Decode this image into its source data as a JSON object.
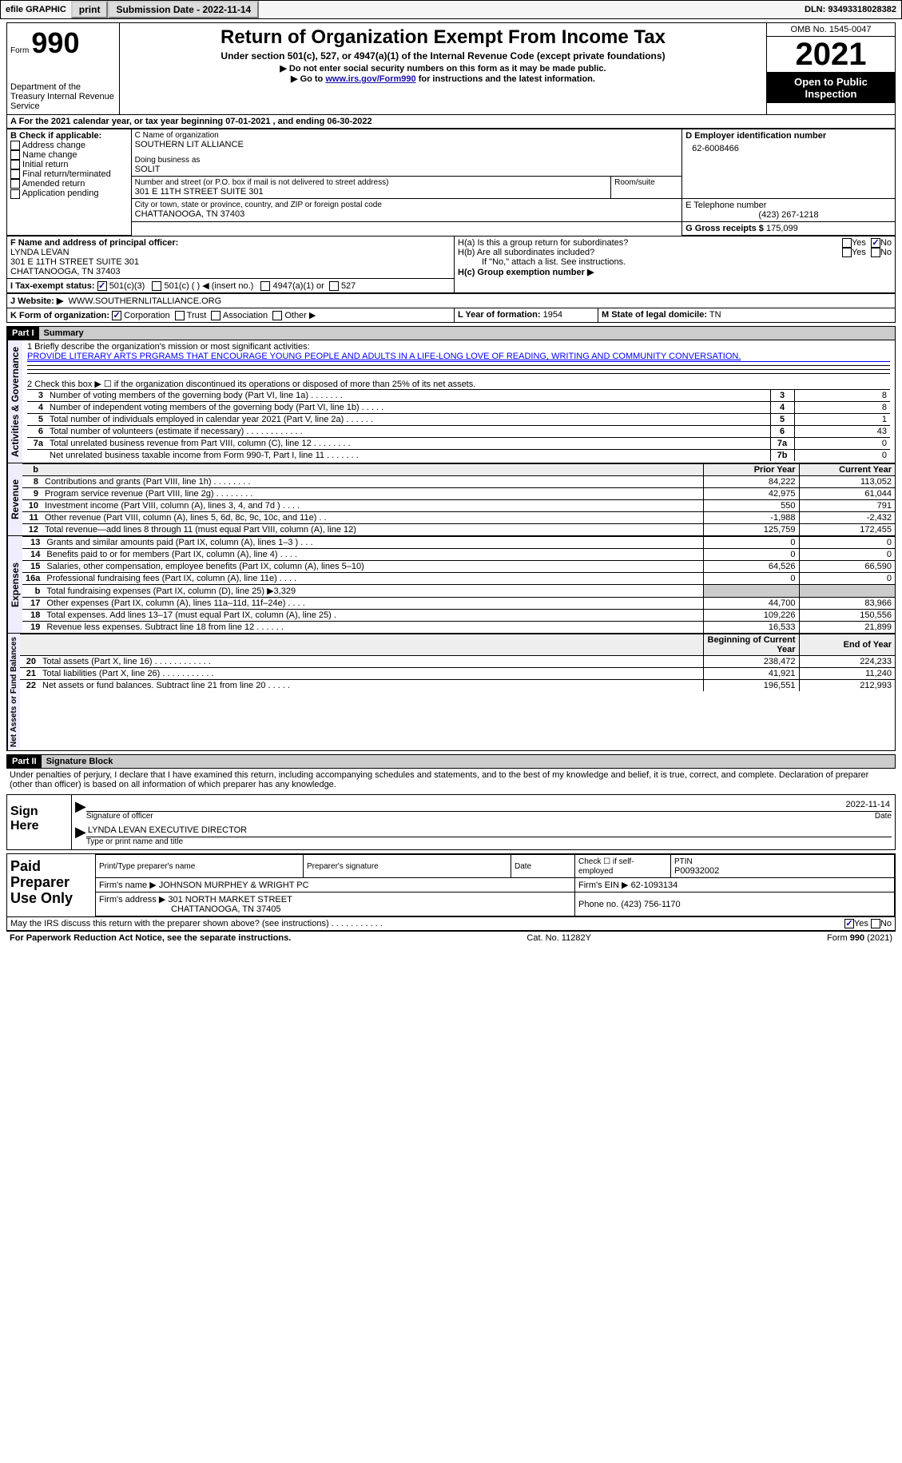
{
  "topbar": {
    "efile": "efile GRAPHIC",
    "print": "print",
    "submission_label": "Submission Date - 2022-11-14",
    "dln_label": "DLN: 93493318028382"
  },
  "header": {
    "form_label": "Form",
    "form_num": "990",
    "dept": "Department of the Treasury\nInternal Revenue Service",
    "title": "Return of Organization Exempt From Income Tax",
    "subtitle": "Under section 501(c), 527, or 4947(a)(1) of the Internal Revenue Code (except private foundations)",
    "instr1": "▶ Do not enter social security numbers on this form as it may be made public.",
    "instr2_pre": "▶ Go to ",
    "instr2_link": "www.irs.gov/Form990",
    "instr2_post": " for instructions and the latest information.",
    "omb": "OMB No. 1545-0047",
    "year": "2021",
    "inspect": "Open to Public Inspection"
  },
  "period": {
    "line": "A For the 2021 calendar year, or tax year beginning 07-01-2021    , and ending 06-30-2022"
  },
  "boxB": {
    "label": "B Check if applicable:",
    "opts": [
      "Address change",
      "Name change",
      "Initial return",
      "Final return/terminated",
      "Amended return",
      "Application pending"
    ]
  },
  "boxC": {
    "name_label": "C Name of organization",
    "name": "SOUTHERN LIT ALLIANCE",
    "dba_label": "Doing business as",
    "dba": "SOLIT",
    "street_label": "Number and street (or P.O. box if mail is not delivered to street address)",
    "room_label": "Room/suite",
    "street": "301 E 11TH STREET SUITE 301",
    "city_label": "City or town, state or province, country, and ZIP or foreign postal code",
    "city": "CHATTANOOGA, TN  37403"
  },
  "boxD": {
    "label": "D Employer identification number",
    "value": "62-6008466"
  },
  "boxE": {
    "label": "E Telephone number",
    "value": "(423) 267-1218"
  },
  "boxG": {
    "label": "G Gross receipts $",
    "value": "175,099"
  },
  "boxF": {
    "label": "F Name and address of principal officer:",
    "name": "LYNDA LEVAN",
    "street": "301 E 11TH STREET SUITE 301",
    "city": "CHATTANOOGA, TN  37403"
  },
  "boxH": {
    "a_label": "H(a) Is this a group return for subordinates?",
    "b_label": "H(b) Are all subordinates included?",
    "b_note": "If \"No,\" attach a list. See instructions.",
    "c_label": "H(c) Group exemption number ▶"
  },
  "rowI": {
    "label": "I   Tax-exempt status:",
    "opts": [
      "501(c)(3)",
      "501(c) (  ) ◀ (insert no.)",
      "4947(a)(1) or",
      "527"
    ]
  },
  "rowJ": {
    "label": "J  Website: ▶",
    "value": "WWW.SOUTHERNLITALLIANCE.ORG"
  },
  "rowK": {
    "label": "K Form of organization:",
    "opts": [
      "Corporation",
      "Trust",
      "Association",
      "Other ▶"
    ]
  },
  "rowL": {
    "label": "L Year of formation:",
    "value": "1954"
  },
  "rowM": {
    "label": "M State of legal domicile:",
    "value": "TN"
  },
  "part1": {
    "hdr": "Part I",
    "title": "Summary",
    "mission_label": "1   Briefly describe the organization's mission or most significant activities:",
    "mission": "PROVIDE LITERARY ARTS PRGRAMS THAT ENCOURAGE YOUNG PEOPLE AND ADULTS IN A LIFE-LONG LOVE OF READING, WRITING AND COMMUNITY CONVERSATION.",
    "line2": "2   Check this box ▶ ☐ if the organization discontinued its operations or disposed of more than 25% of its net assets.",
    "sections": {
      "activities_label": "Activities & Governance",
      "revenue_label": "Revenue",
      "expenses_label": "Expenses",
      "netassets_label": "Net Assets or Fund Balances"
    },
    "gov_rows": [
      {
        "n": "3",
        "t": "Number of voting members of the governing body (Part VI, line 1a)   .    .    .    .    .    .    .",
        "box": "3",
        "v": "8"
      },
      {
        "n": "4",
        "t": "Number of independent voting members of the governing body (Part VI, line 1b)   .    .    .    .    .",
        "box": "4",
        "v": "8"
      },
      {
        "n": "5",
        "t": "Total number of individuals employed in calendar year 2021 (Part V, line 2a)   .    .    .    .    .    .",
        "box": "5",
        "v": "1"
      },
      {
        "n": "6",
        "t": "Total number of volunteers (estimate if necessary)    .    .    .    .    .    .    .    .    .    .    .    .",
        "box": "6",
        "v": "43"
      },
      {
        "n": "7a",
        "t": "Total unrelated business revenue from Part VIII, column (C), line 12   .    .    .    .    .    .    .    .",
        "box": "7a",
        "v": "0"
      },
      {
        "n": "",
        "t": "Net unrelated business taxable income from Form 990-T, Part I, line 11   .    .    .    .    .    .    .",
        "box": "7b",
        "v": "0"
      }
    ],
    "col_hdr": {
      "b": "b",
      "prior": "Prior Year",
      "current": "Current Year"
    },
    "rev_rows": [
      {
        "n": "8",
        "t": "Contributions and grants (Part VIII, line 1h)    .    .    .    .    .    .    .    .",
        "p": "84,222",
        "c": "113,052"
      },
      {
        "n": "9",
        "t": "Program service revenue (Part VIII, line 2g)   .    .    .    .    .    .    .    .",
        "p": "42,975",
        "c": "61,044"
      },
      {
        "n": "10",
        "t": "Investment income (Part VIII, column (A), lines 3, 4, and 7d )   .    .    .    .",
        "p": "550",
        "c": "791"
      },
      {
        "n": "11",
        "t": "Other revenue (Part VIII, column (A), lines 5, 6d, 8c, 9c, 10c, and 11e)    .    .",
        "p": "-1,988",
        "c": "-2,432"
      },
      {
        "n": "12",
        "t": "Total revenue—add lines 8 through 11 (must equal Part VIII, column (A), line 12)",
        "p": "125,759",
        "c": "172,455"
      }
    ],
    "exp_rows": [
      {
        "n": "13",
        "t": "Grants and similar amounts paid (Part IX, column (A), lines 1–3 )  .    .    .",
        "p": "0",
        "c": "0"
      },
      {
        "n": "14",
        "t": "Benefits paid to or for members (Part IX, column (A), line 4)   .    .    .    .",
        "p": "0",
        "c": "0"
      },
      {
        "n": "15",
        "t": "Salaries, other compensation, employee benefits (Part IX, column (A), lines 5–10)",
        "p": "64,526",
        "c": "66,590"
      },
      {
        "n": "16a",
        "t": "Professional fundraising fees (Part IX, column (A), line 11e)    .    .    .    .",
        "p": "0",
        "c": "0"
      },
      {
        "n": "b",
        "t": "Total fundraising expenses (Part IX, column (D), line 25)  ▶3,329",
        "p": "",
        "c": "",
        "shade": true
      },
      {
        "n": "17",
        "t": "Other expenses (Part IX, column (A), lines 11a–11d, 11f–24e)   .    .    .    .",
        "p": "44,700",
        "c": "83,966"
      },
      {
        "n": "18",
        "t": "Total expenses. Add lines 13–17 (must equal Part IX, column (A), line 25)  .",
        "p": "109,226",
        "c": "150,556"
      },
      {
        "n": "19",
        "t": "Revenue less expenses. Subtract line 18 from line 12   .    .    .    .    .    .",
        "p": "16,533",
        "c": "21,899"
      }
    ],
    "na_hdr": {
      "beg": "Beginning of Current Year",
      "end": "End of Year"
    },
    "na_rows": [
      {
        "n": "20",
        "t": "Total assets (Part X, line 16)   .    .    .    .    .    .    .    .    .    .    .    .",
        "p": "238,472",
        "c": "224,233"
      },
      {
        "n": "21",
        "t": "Total liabilities (Part X, line 26)    .    .    .    .    .    .    .    .    .    .    .",
        "p": "41,921",
        "c": "11,240"
      },
      {
        "n": "22",
        "t": "Net assets or fund balances. Subtract line 21 from line 20   .    .    .    .    .",
        "p": "196,551",
        "c": "212,993"
      }
    ]
  },
  "part2": {
    "hdr": "Part II",
    "title": "Signature Block",
    "decl": "Under penalties of perjury, I declare that I have examined this return, including accompanying schedules and statements, and to the best of my knowledge and belief, it is true, correct, and complete. Declaration of preparer (other than officer) is based on all information of which preparer has any knowledge.",
    "sign_here": "Sign Here",
    "sig_officer": "Signature of officer",
    "sig_date": "2022-11-14",
    "date_lbl": "Date",
    "officer_name": "LYNDA LEVAN  EXECUTIVE DIRECTOR",
    "type_name": "Type or print name and title",
    "paid_label": "Paid Preparer Use Only",
    "prep_name_lbl": "Print/Type preparer's name",
    "prep_sig_lbl": "Preparer's signature",
    "prep_date_lbl": "Date",
    "self_emp": "Check ☐ if self-employed",
    "ptin_lbl": "PTIN",
    "ptin": "P00932002",
    "firm_name_lbl": "Firm's name    ▶",
    "firm_name": "JOHNSON MURPHEY & WRIGHT PC",
    "firm_ein_lbl": "Firm's EIN ▶",
    "firm_ein": "62-1093134",
    "firm_addr_lbl": "Firm's address ▶",
    "firm_addr1": "301 NORTH MARKET STREET",
    "firm_addr2": "CHATTANOOGA, TN  37405",
    "phone_lbl": "Phone no.",
    "phone": "(423) 756-1170",
    "discuss": "May the IRS discuss this return with the preparer shown above? (see instructions)    .    .    .    .    .    .    .    .    .    .    .",
    "yes": "Yes",
    "no": "No"
  },
  "footer": {
    "pra": "For Paperwork Reduction Act Notice, see the separate instructions.",
    "cat": "Cat. No. 11282Y",
    "form": "Form 990 (2021)"
  }
}
